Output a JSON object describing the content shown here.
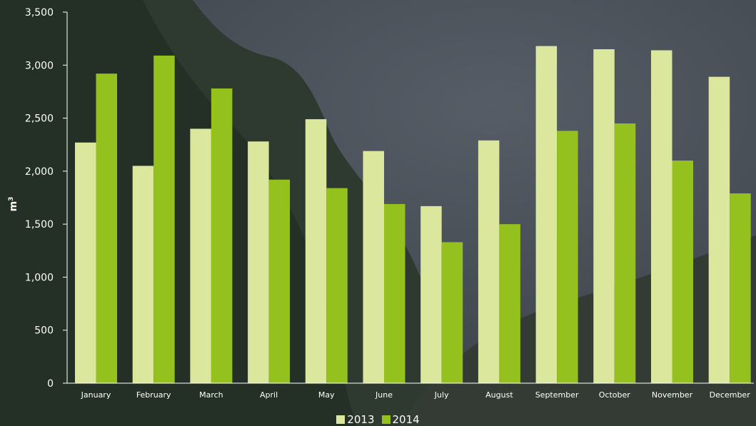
{
  "colors": {
    "series_2013": "#dbe79c",
    "series_2014": "#95c11f",
    "axis": "#ffffff",
    "text": "#ffffff"
  },
  "chart_data": {
    "type": "bar",
    "title": "",
    "xlabel": "",
    "ylabel": "m",
    "ylabel_superscript": "3",
    "ylim": [
      0,
      3500
    ],
    "yticks": [
      "0",
      "500",
      "1,000",
      "1,500",
      "2,000",
      "2,500",
      "3,000",
      "3,500"
    ],
    "ytick_values": [
      0,
      500,
      1000,
      1500,
      2000,
      2500,
      3000,
      3500
    ],
    "grid": false,
    "legend_position": "bottom-center",
    "categories": [
      "January",
      "February",
      "March",
      "April",
      "May",
      "June",
      "July",
      "August",
      "September",
      "October",
      "November",
      "December"
    ],
    "series": [
      {
        "name": "2013",
        "color": "#dbe79c",
        "values": [
          2270,
          2050,
          2400,
          2280,
          2490,
          2190,
          1670,
          2290,
          3180,
          3150,
          3140,
          2890
        ]
      },
      {
        "name": "2014",
        "color": "#95c11f",
        "values": [
          2920,
          3090,
          2780,
          1920,
          1840,
          1690,
          1330,
          1500,
          2380,
          2450,
          2100,
          1790
        ]
      }
    ]
  }
}
